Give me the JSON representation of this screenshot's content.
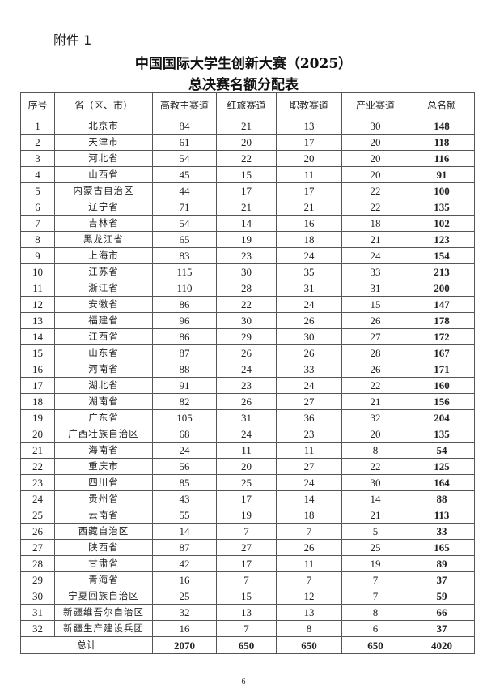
{
  "attachment_label": "附件 1",
  "title_line1": "中国国际大学生创新大赛（2025）",
  "title_line2": "总决赛名额分配表",
  "columns": [
    "序号",
    "省（区、市）",
    "高教主赛道",
    "红旅赛道",
    "职教赛道",
    "产业赛道",
    "总名额"
  ],
  "rows": [
    [
      "1",
      "北京市",
      "84",
      "21",
      "13",
      "30",
      "148"
    ],
    [
      "2",
      "天津市",
      "61",
      "20",
      "17",
      "20",
      "118"
    ],
    [
      "3",
      "河北省",
      "54",
      "22",
      "20",
      "20",
      "116"
    ],
    [
      "4",
      "山西省",
      "45",
      "15",
      "11",
      "20",
      "91"
    ],
    [
      "5",
      "内蒙古自治区",
      "44",
      "17",
      "17",
      "22",
      "100"
    ],
    [
      "6",
      "辽宁省",
      "71",
      "21",
      "21",
      "22",
      "135"
    ],
    [
      "7",
      "吉林省",
      "54",
      "14",
      "16",
      "18",
      "102"
    ],
    [
      "8",
      "黑龙江省",
      "65",
      "19",
      "18",
      "21",
      "123"
    ],
    [
      "9",
      "上海市",
      "83",
      "23",
      "24",
      "24",
      "154"
    ],
    [
      "10",
      "江苏省",
      "115",
      "30",
      "35",
      "33",
      "213"
    ],
    [
      "11",
      "浙江省",
      "110",
      "28",
      "31",
      "31",
      "200"
    ],
    [
      "12",
      "安徽省",
      "86",
      "22",
      "24",
      "15",
      "147"
    ],
    [
      "13",
      "福建省",
      "96",
      "30",
      "26",
      "26",
      "178"
    ],
    [
      "14",
      "江西省",
      "86",
      "29",
      "30",
      "27",
      "172"
    ],
    [
      "15",
      "山东省",
      "87",
      "26",
      "26",
      "28",
      "167"
    ],
    [
      "16",
      "河南省",
      "88",
      "24",
      "33",
      "26",
      "171"
    ],
    [
      "17",
      "湖北省",
      "91",
      "23",
      "24",
      "22",
      "160"
    ],
    [
      "18",
      "湖南省",
      "82",
      "26",
      "27",
      "21",
      "156"
    ],
    [
      "19",
      "广东省",
      "105",
      "31",
      "36",
      "32",
      "204"
    ],
    [
      "20",
      "广西壮族自治区",
      "68",
      "24",
      "23",
      "20",
      "135"
    ],
    [
      "21",
      "海南省",
      "24",
      "11",
      "11",
      "8",
      "54"
    ],
    [
      "22",
      "重庆市",
      "56",
      "20",
      "27",
      "22",
      "125"
    ],
    [
      "23",
      "四川省",
      "85",
      "25",
      "24",
      "30",
      "164"
    ],
    [
      "24",
      "贵州省",
      "43",
      "17",
      "14",
      "14",
      "88"
    ],
    [
      "25",
      "云南省",
      "55",
      "19",
      "18",
      "21",
      "113"
    ],
    [
      "26",
      "西藏自治区",
      "14",
      "7",
      "7",
      "5",
      "33"
    ],
    [
      "27",
      "陕西省",
      "87",
      "27",
      "26",
      "25",
      "165"
    ],
    [
      "28",
      "甘肃省",
      "42",
      "17",
      "11",
      "19",
      "89"
    ],
    [
      "29",
      "青海省",
      "16",
      "7",
      "7",
      "7",
      "37"
    ],
    [
      "30",
      "宁夏回族自治区",
      "25",
      "15",
      "12",
      "7",
      "59"
    ],
    [
      "31",
      "新疆维吾尔自治区",
      "32",
      "13",
      "13",
      "8",
      "66"
    ],
    [
      "32",
      "新疆生产建设兵团",
      "16",
      "7",
      "8",
      "6",
      "37"
    ]
  ],
  "total_row": {
    "label": "总计",
    "values": [
      "2070",
      "650",
      "650",
      "650",
      "4020"
    ]
  },
  "page_number": "6"
}
